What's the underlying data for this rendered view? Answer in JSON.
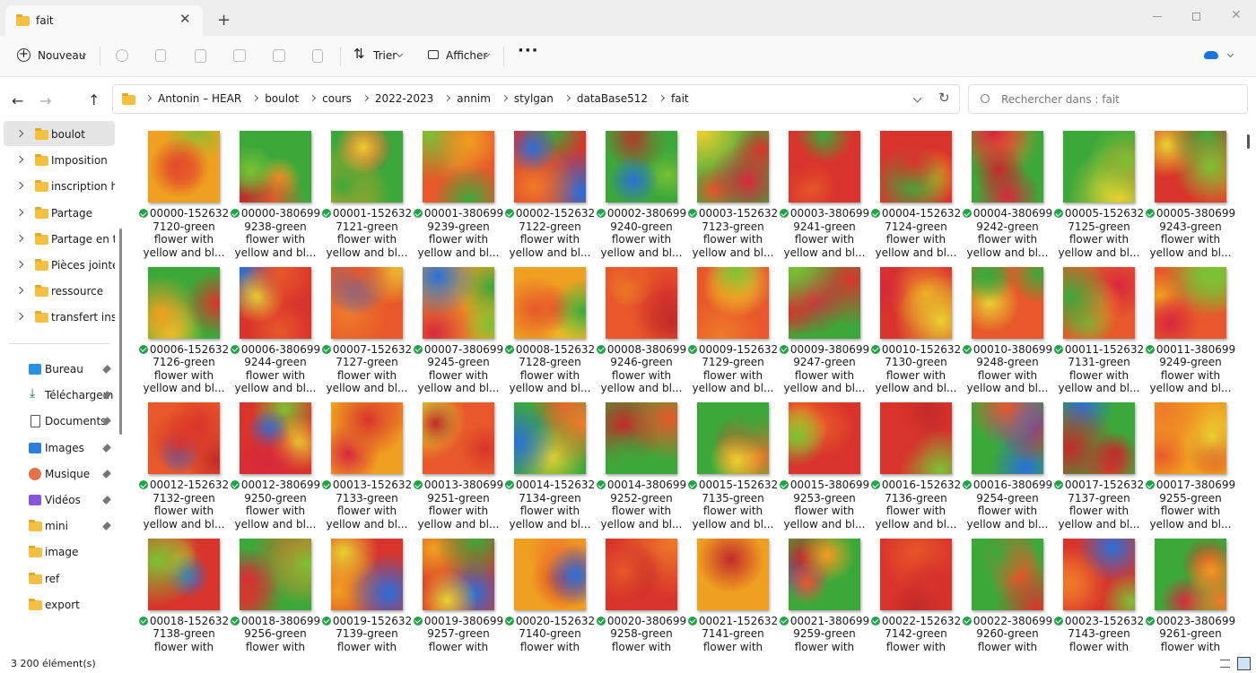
{
  "tab": {
    "title": "fait"
  },
  "toolbar": {
    "new": "Nouveau",
    "sort": "Trier",
    "view": "Afficher"
  },
  "address": {
    "path": [
      "Antonin – HEAR",
      "boulot",
      "cours",
      "2022-2023",
      "annim",
      "stylgan",
      "dataBase512",
      "fait"
    ]
  },
  "search": {
    "placeholder": "Rechercher dans : fait"
  },
  "sidebar": {
    "tree": [
      "boulot",
      "Imposition",
      "inscription hea",
      "Partage",
      "Partage en tou",
      "Pièces jointes",
      "ressource",
      "transfert insta"
    ],
    "quick": [
      "Bureau",
      "Téléchargem",
      "Documents",
      "Images",
      "Musique",
      "Vidéos",
      "mini",
      "image",
      "ref",
      "export"
    ]
  },
  "files": [
    [
      "00000-152632",
      "7120-green",
      "flower with",
      "yellow and bl..."
    ],
    [
      "00000-380699",
      "9238-green",
      "flower with",
      "yellow and bl..."
    ],
    [
      "00001-152632",
      "7121-green",
      "flower with",
      "yellow and bl..."
    ],
    [
      "00001-380699",
      "9239-green",
      "flower with",
      "yellow and bl..."
    ],
    [
      "00002-152632",
      "7122-green",
      "flower with",
      "yellow and bl..."
    ],
    [
      "00002-380699",
      "9240-green",
      "flower with",
      "yellow and bl..."
    ],
    [
      "00003-152632",
      "7123-green",
      "flower with",
      "yellow and bl..."
    ],
    [
      "00003-380699",
      "9241-green",
      "flower with",
      "yellow and bl..."
    ],
    [
      "00004-152632",
      "7124-green",
      "flower with",
      "yellow and bl..."
    ],
    [
      "00004-380699",
      "9242-green",
      "flower with",
      "yellow and bl..."
    ],
    [
      "00005-152632",
      "7125-green",
      "flower with",
      "yellow and bl..."
    ],
    [
      "00005-380699",
      "9243-green",
      "flower with",
      "yellow and bl..."
    ],
    [
      "00006-152632",
      "7126-green",
      "flower with",
      "yellow and bl..."
    ],
    [
      "00006-380699",
      "9244-green",
      "flower with",
      "yellow and bl..."
    ],
    [
      "00007-152632",
      "7127-green",
      "flower with",
      "yellow and bl..."
    ],
    [
      "00007-380699",
      "9245-green",
      "flower with",
      "yellow and bl..."
    ],
    [
      "00008-152632",
      "7128-green",
      "flower with",
      "yellow and bl..."
    ],
    [
      "00008-380699",
      "9246-green",
      "flower with",
      "yellow and bl..."
    ],
    [
      "00009-152632",
      "7129-green",
      "flower with",
      "yellow and bl..."
    ],
    [
      "00009-380699",
      "9247-green",
      "flower with",
      "yellow and bl..."
    ],
    [
      "00010-152632",
      "7130-green",
      "flower with",
      "yellow and bl..."
    ],
    [
      "00010-380699",
      "9248-green",
      "flower with",
      "yellow and bl..."
    ],
    [
      "00011-152632",
      "7131-green",
      "flower with",
      "yellow and bl..."
    ],
    [
      "00011-380699",
      "9249-green",
      "flower with",
      "yellow and bl..."
    ],
    [
      "00012-152632",
      "7132-green",
      "flower with",
      "yellow and bl..."
    ],
    [
      "00012-380699",
      "9250-green",
      "flower with",
      "yellow and bl..."
    ],
    [
      "00013-152632",
      "7133-green",
      "flower with",
      "yellow and bl..."
    ],
    [
      "00013-380699",
      "9251-green",
      "flower with",
      "yellow and bl..."
    ],
    [
      "00014-152632",
      "7134-green",
      "flower with",
      "yellow and bl..."
    ],
    [
      "00014-380699",
      "9252-green",
      "flower with",
      "yellow and bl..."
    ],
    [
      "00015-152632",
      "7135-green",
      "flower with",
      "yellow and bl..."
    ],
    [
      "00015-380699",
      "9253-green",
      "flower with",
      "yellow and bl..."
    ],
    [
      "00016-152632",
      "7136-green",
      "flower with",
      "yellow and bl..."
    ],
    [
      "00016-380699",
      "9254-green",
      "flower with",
      "yellow and bl..."
    ],
    [
      "00017-152632",
      "7137-green",
      "flower with",
      "yellow and bl..."
    ],
    [
      "00017-380699",
      "9255-green",
      "flower with",
      "yellow and bl..."
    ],
    [
      "00018-152632",
      "7138-green",
      "flower with"
    ],
    [
      "00018-380699",
      "9256-green",
      "flower with"
    ],
    [
      "00019-152632",
      "7139-green",
      "flower with"
    ],
    [
      "00019-380699",
      "9257-green",
      "flower with"
    ],
    [
      "00020-152632",
      "7140-green",
      "flower with"
    ],
    [
      "00020-380699",
      "9258-green",
      "flower with"
    ],
    [
      "00021-152632",
      "7141-green",
      "flower with"
    ],
    [
      "00021-380699",
      "9259-green",
      "flower with"
    ],
    [
      "00022-152632",
      "7142-green",
      "flower with"
    ],
    [
      "00022-380699",
      "9260-green",
      "flower with"
    ],
    [
      "00023-152632",
      "7143-green",
      "flower with"
    ],
    [
      "00023-380699",
      "9261-green",
      "flower with"
    ]
  ],
  "status": "3 200 élément(s)"
}
